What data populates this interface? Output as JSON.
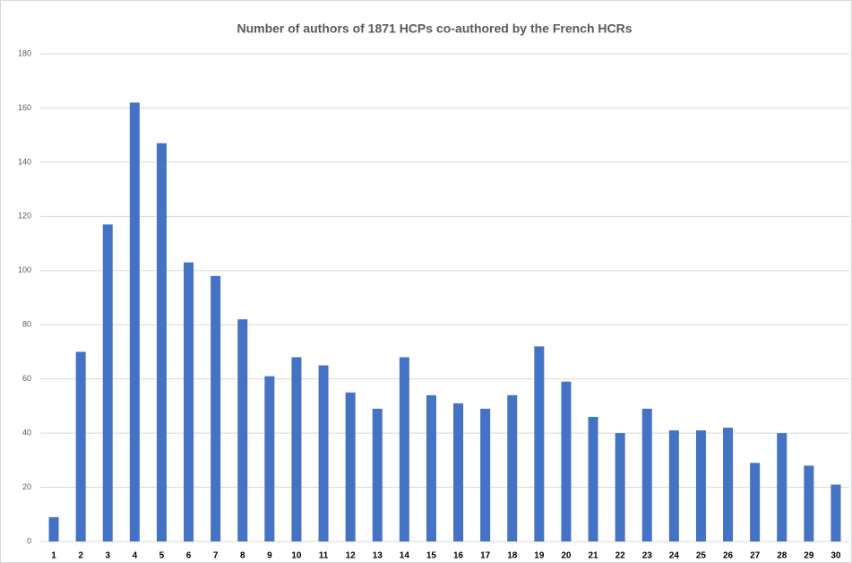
{
  "chart_data": {
    "type": "bar",
    "title": "Number of authors of 1871 HCPs co-authored by the French HCRs",
    "categories": [
      "1",
      "2",
      "3",
      "4",
      "5",
      "6",
      "7",
      "8",
      "9",
      "10",
      "11",
      "12",
      "13",
      "14",
      "15",
      "16",
      "17",
      "18",
      "19",
      "20",
      "21",
      "22",
      "23",
      "24",
      "25",
      "26",
      "27",
      "28",
      "29",
      "30"
    ],
    "values": [
      9,
      70,
      117,
      162,
      147,
      103,
      98,
      82,
      61,
      68,
      65,
      55,
      49,
      68,
      54,
      51,
      49,
      54,
      72,
      59,
      46,
      40,
      49,
      41,
      41,
      42,
      29,
      40,
      28,
      21
    ],
    "color": "#4472c4",
    "ylim": [
      0,
      180
    ],
    "yticks": [
      0,
      20,
      40,
      60,
      80,
      100,
      120,
      140,
      160,
      180
    ],
    "grid": true
  }
}
